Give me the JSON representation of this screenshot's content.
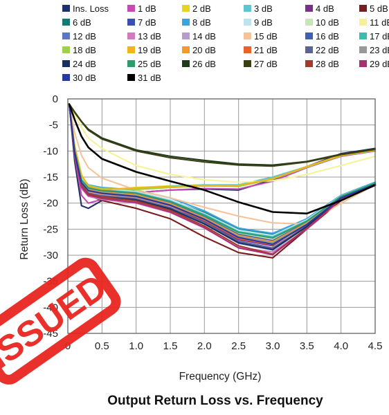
{
  "chart_data": {
    "type": "line",
    "title": "Output Return Loss vs. Frequency",
    "xlabel": "Frequency (GHz)",
    "ylabel": "Return Loss (dB)",
    "xlim": [
      0,
      4.5
    ],
    "ylim": [
      -45,
      0
    ],
    "x_ticks": [
      "0",
      "0.5",
      "1.0",
      "1.5",
      "2.0",
      "2.5",
      "3.0",
      "3.5",
      "4.0",
      "4.5"
    ],
    "y_ticks": [
      "0",
      "-5",
      "-10",
      "-15",
      "-20",
      "-25",
      "-30",
      "-35",
      "-40",
      "-45"
    ],
    "grid": true,
    "legend_position": "top",
    "stamp_text": "ISSUED",
    "stamp_color": "#e8251f",
    "series": [
      {
        "name": "Ins. Loss",
        "color": "#1f2f6b",
        "x": [
          0.02,
          0.1,
          0.2,
          0.3,
          0.5,
          1.0,
          1.5,
          2.0,
          2.5,
          3.0,
          3.5,
          4.0,
          4.5
        ],
        "y": [
          -1,
          -12,
          -20.5,
          -21,
          -19.5,
          -18,
          -17.5,
          -17.3,
          -17.5,
          -15.5,
          -13,
          -10.5,
          -9.5
        ]
      },
      {
        "name": "1 dB",
        "color": "#c74ab0",
        "x": [
          0.02,
          0.1,
          0.2,
          0.3,
          0.5,
          1.0,
          1.5,
          2.0,
          2.5,
          3.0,
          3.5,
          4.0,
          4.5
        ],
        "y": [
          -1,
          -11,
          -18.5,
          -20,
          -19.3,
          -18,
          -17.5,
          -17.2,
          -17.3,
          -15.8,
          -13.2,
          -11,
          -10
        ]
      },
      {
        "name": "2 dB",
        "color": "#e6d51a",
        "x": [
          0.02,
          0.1,
          0.2,
          0.3,
          0.5,
          1.0,
          1.5,
          2.0,
          2.5,
          3.0,
          3.5,
          4.0,
          4.5
        ],
        "y": [
          -1,
          -9,
          -14.5,
          -16.8,
          -17.5,
          -17,
          -16.7,
          -16.5,
          -16.7,
          -15.2,
          -13,
          -10.8,
          -9.8
        ]
      },
      {
        "name": "3 dB",
        "color": "#5ec4cf",
        "x": [
          0.02,
          0.1,
          0.2,
          0.3,
          0.5,
          1.0,
          1.5,
          2.0,
          2.5,
          3.0,
          3.5,
          4.0,
          4.5
        ],
        "y": [
          -1,
          -9,
          -15,
          -17.2,
          -17.7,
          -17.2,
          -16.8,
          -16.5,
          -16.5,
          -15,
          -13,
          -10.8,
          -9.8
        ]
      },
      {
        "name": "4 dB",
        "color": "#7b2e8a",
        "x": [
          0.02,
          0.1,
          0.2,
          0.3,
          0.5,
          1.0,
          1.5,
          2.0,
          2.5,
          3.0,
          3.5,
          4.0,
          4.5
        ],
        "y": [
          -1,
          -10.5,
          -16,
          -17.5,
          -18,
          -18.5,
          -20.5,
          -23.5,
          -27,
          -28.2,
          -24,
          -19,
          -16.5
        ]
      },
      {
        "name": "5 dB",
        "color": "#7b1c1c",
        "x": [
          0.02,
          0.1,
          0.2,
          0.3,
          0.5,
          1.0,
          1.5,
          2.0,
          2.5,
          3.0,
          3.5,
          4.0,
          4.5
        ],
        "y": [
          -1,
          -11,
          -17,
          -18.5,
          -19.5,
          -21,
          -23,
          -26.5,
          -29.5,
          -30.5,
          -25,
          -19.5,
          -16.5
        ]
      },
      {
        "name": "6 dB",
        "color": "#127a6e",
        "x": [
          0.02,
          0.1,
          0.2,
          0.3,
          0.5,
          1.0,
          1.5,
          2.0,
          2.5,
          3.0,
          3.5,
          4.0,
          4.5
        ],
        "y": [
          -1,
          -10,
          -15.5,
          -16.8,
          -17.3,
          -17.8,
          -19.5,
          -21.8,
          -25,
          -26,
          -23,
          -18.5,
          -16
        ]
      },
      {
        "name": "7 dB",
        "color": "#3b4fb0",
        "x": [
          0.02,
          0.1,
          0.2,
          0.3,
          0.5,
          1.0,
          1.5,
          2.0,
          2.5,
          3.0,
          3.5,
          4.0,
          4.5
        ],
        "y": [
          -1,
          -10,
          -15.8,
          -17,
          -17.5,
          -18,
          -19.8,
          -22.3,
          -25.7,
          -26.8,
          -23.5,
          -18.8,
          -16.2
        ]
      },
      {
        "name": "8 dB",
        "color": "#3aa3e0",
        "x": [
          0.02,
          0.1,
          0.2,
          0.3,
          0.5,
          1.0,
          1.5,
          2.0,
          2.5,
          3.0,
          3.5,
          4.0,
          4.5
        ],
        "y": [
          -1,
          -9.5,
          -15,
          -16.5,
          -17,
          -17.5,
          -19,
          -21.5,
          -24.8,
          -25.8,
          -23,
          -18.5,
          -16
        ]
      },
      {
        "name": "9 dB",
        "color": "#bde3ef",
        "x": [
          0.02,
          0.1,
          0.2,
          0.3,
          0.5,
          1.0,
          1.5,
          2.0,
          2.5,
          3.0,
          3.5,
          4.0,
          4.5
        ],
        "y": [
          -1,
          -9.5,
          -15.2,
          -16.8,
          -17.2,
          -17.8,
          -19.4,
          -22,
          -25.2,
          -26.2,
          -23.2,
          -18.6,
          -16.1
        ]
      },
      {
        "name": "10 dB",
        "color": "#c8e6b5",
        "x": [
          0.02,
          0.1,
          0.2,
          0.3,
          0.5,
          1.0,
          1.5,
          2.0,
          2.5,
          3.0,
          3.5,
          4.0,
          4.5
        ],
        "y": [
          -1,
          -9.8,
          -15.5,
          -17,
          -17.5,
          -18.2,
          -19.8,
          -22.5,
          -25.8,
          -26.9,
          -23.6,
          -18.9,
          -16.3
        ]
      },
      {
        "name": "11 dB",
        "color": "#f7f29a",
        "x": [
          0.02,
          0.1,
          0.2,
          0.3,
          0.5,
          1.0,
          1.5,
          2.0,
          2.5,
          3.0,
          3.5,
          4.0,
          4.5
        ],
        "y": [
          -1,
          -3,
          -5.5,
          -7.5,
          -9.5,
          -12.8,
          -14.5,
          -15.5,
          -16,
          -15.7,
          -14.5,
          -12.8,
          -11
        ]
      },
      {
        "name": "12 dB",
        "color": "#5b77bf",
        "x": [
          0.02,
          0.1,
          0.2,
          0.3,
          0.5,
          1.0,
          1.5,
          2.0,
          2.5,
          3.0,
          3.5,
          4.0,
          4.5
        ],
        "y": [
          -1,
          -11,
          -17,
          -18.5,
          -19,
          -19.5,
          -21.2,
          -24,
          -27.7,
          -29,
          -24.5,
          -19,
          -16.5
        ]
      },
      {
        "name": "13 dB",
        "color": "#d17ac0",
        "x": [
          0.02,
          0.1,
          0.2,
          0.3,
          0.5,
          1.0,
          1.5,
          2.0,
          2.5,
          3.0,
          3.5,
          4.0,
          4.5
        ],
        "y": [
          -1,
          -11,
          -17.2,
          -18.7,
          -19.3,
          -20,
          -21.8,
          -24.8,
          -28.5,
          -29.4,
          -25,
          -19.2,
          -16.6
        ]
      },
      {
        "name": "14 dB",
        "color": "#b59bd1",
        "x": [
          0.02,
          0.1,
          0.2,
          0.3,
          0.5,
          1.0,
          1.5,
          2.0,
          2.5,
          3.0,
          3.5,
          4.0,
          4.5
        ],
        "y": [
          -1,
          -10.5,
          -16.5,
          -18,
          -18.5,
          -19,
          -20.6,
          -23.2,
          -26.5,
          -27.8,
          -24,
          -18.9,
          -16.3
        ]
      },
      {
        "name": "15 dB",
        "color": "#f5c29a",
        "x": [
          0.02,
          0.1,
          0.2,
          0.3,
          0.5,
          1.0,
          1.5,
          2.0,
          2.5,
          3.0,
          3.5,
          4.0,
          4.5
        ],
        "y": [
          -1,
          -6.5,
          -10.8,
          -13.2,
          -15.2,
          -17.5,
          -19,
          -20.8,
          -22.5,
          -23.8,
          -24,
          -20,
          -16.5
        ]
      },
      {
        "name": "16 dB",
        "color": "#3f5fb5",
        "x": [
          0.02,
          0.1,
          0.2,
          0.3,
          0.5,
          1.0,
          1.5,
          2.0,
          2.5,
          3.0,
          3.5,
          4.0,
          4.5
        ],
        "y": [
          -1,
          -10.2,
          -15.8,
          -17.3,
          -17.8,
          -18.3,
          -20,
          -22.7,
          -26,
          -27.2,
          -23.7,
          -18.8,
          -16.2
        ]
      },
      {
        "name": "17 dB",
        "color": "#3cbcb0",
        "x": [
          0.02,
          0.1,
          0.2,
          0.3,
          0.5,
          1.0,
          1.5,
          2.0,
          2.5,
          3.0,
          3.5,
          4.0,
          4.5
        ],
        "y": [
          -1,
          -9.8,
          -15.5,
          -17,
          -17.5,
          -18,
          -19.6,
          -22.2,
          -25.5,
          -26.5,
          -23.4,
          -18.7,
          -16.1
        ]
      },
      {
        "name": "18 dB",
        "color": "#9ed04a",
        "x": [
          0.02,
          0.1,
          0.2,
          0.3,
          0.5,
          1.0,
          1.5,
          2.0,
          2.5,
          3.0,
          3.5,
          4.0,
          4.5
        ],
        "y": [
          -1,
          -9.2,
          -14.8,
          -16.6,
          -17.2,
          -17.4,
          -17,
          -16.7,
          -16.8,
          -15.4,
          -13.1,
          -10.9,
          -9.9
        ]
      },
      {
        "name": "19 dB",
        "color": "#f0b41a",
        "x": [
          0.02,
          0.1,
          0.2,
          0.3,
          0.5,
          1.0,
          1.5,
          2.0,
          2.5,
          3.0,
          3.5,
          4.0,
          4.5
        ],
        "y": [
          -1,
          -9.1,
          -14.7,
          -16.7,
          -17.4,
          -17.1,
          -16.9,
          -16.6,
          -16.6,
          -15.3,
          -13,
          -10.8,
          -9.8
        ]
      },
      {
        "name": "20 dB",
        "color": "#f29a2e",
        "x": [
          0.02,
          0.1,
          0.2,
          0.3,
          0.5,
          1.0,
          1.5,
          2.0,
          2.5,
          3.0,
          3.5,
          4.0,
          4.5
        ],
        "y": [
          -1,
          -10,
          -15.9,
          -17.4,
          -17.9,
          -18.4,
          -20.1,
          -22.8,
          -26.2,
          -27.4,
          -23.8,
          -18.8,
          -16.3
        ]
      },
      {
        "name": "21 dB",
        "color": "#e8622a",
        "x": [
          0.02,
          0.1,
          0.2,
          0.3,
          0.5,
          1.0,
          1.5,
          2.0,
          2.5,
          3.0,
          3.5,
          4.0,
          4.5
        ],
        "y": [
          -1,
          -10.4,
          -16.2,
          -17.7,
          -18.2,
          -18.8,
          -20.5,
          -23.3,
          -26.8,
          -28,
          -24.2,
          -19,
          -16.4
        ]
      },
      {
        "name": "22 dB",
        "color": "#5a6496",
        "x": [
          0.02,
          0.1,
          0.2,
          0.3,
          0.5,
          1.0,
          1.5,
          2.0,
          2.5,
          3.0,
          3.5,
          4.0,
          4.5
        ],
        "y": [
          -1,
          -10.7,
          -16.6,
          -18.1,
          -18.6,
          -19.2,
          -20.9,
          -23.7,
          -27.3,
          -28.6,
          -24.4,
          -19.1,
          -16.5
        ]
      },
      {
        "name": "23 dB",
        "color": "#999999",
        "x": [
          0.02,
          0.1,
          0.2,
          0.3,
          0.5,
          1.0,
          1.5,
          2.0,
          2.5,
          3.0,
          3.5,
          4.0,
          4.5
        ],
        "y": [
          -1,
          -10.1,
          -16,
          -17.5,
          -18,
          -18.6,
          -20.3,
          -23,
          -26.4,
          -27.6,
          -24,
          -18.9,
          -16.3
        ]
      },
      {
        "name": "24 dB",
        "color": "#1a2f5e",
        "x": [
          0.02,
          0.1,
          0.2,
          0.3,
          0.5,
          1.0,
          1.5,
          2.0,
          2.5,
          3.0,
          3.5,
          4.0,
          4.5
        ],
        "y": [
          -1,
          -10.8,
          -16.8,
          -18.3,
          -18.8,
          -19.4,
          -21.1,
          -24,
          -27.6,
          -28.9,
          -24.5,
          -19.1,
          -16.5
        ]
      },
      {
        "name": "25 dB",
        "color": "#2f9a6a",
        "x": [
          0.02,
          0.1,
          0.2,
          0.3,
          0.5,
          1.0,
          1.5,
          2.0,
          2.5,
          3.0,
          3.5,
          4.0,
          4.5
        ],
        "y": [
          -1,
          -9.9,
          -15.6,
          -17.1,
          -17.6,
          -18.1,
          -19.7,
          -22.4,
          -25.6,
          -26.7,
          -23.5,
          -18.7,
          -16.2
        ]
      },
      {
        "name": "26 dB",
        "color": "#1f3b1a",
        "x": [
          0.02,
          0.1,
          0.2,
          0.3,
          0.5,
          1.0,
          1.5,
          2.0,
          2.5,
          3.0,
          3.5,
          4.0,
          4.5
        ],
        "y": [
          -1,
          -2.5,
          -4.3,
          -5.8,
          -7.5,
          -9.8,
          -11,
          -11.8,
          -12.5,
          -12.7,
          -12,
          -10.6,
          -9.6
        ]
      },
      {
        "name": "27 dB",
        "color": "#3b3f14",
        "x": [
          0.02,
          0.1,
          0.2,
          0.3,
          0.5,
          1.0,
          1.5,
          2.0,
          2.5,
          3.0,
          3.5,
          4.0,
          4.5
        ],
        "y": [
          -1,
          -2.6,
          -4.4,
          -6,
          -7.7,
          -10,
          -11.3,
          -12.1,
          -12.7,
          -12.9,
          -12.1,
          -10.7,
          -9.7
        ]
      },
      {
        "name": "28 dB",
        "color": "#a33a2a",
        "x": [
          0.02,
          0.1,
          0.2,
          0.3,
          0.5,
          1.0,
          1.5,
          2.0,
          2.5,
          3.0,
          3.5,
          4.0,
          4.5
        ],
        "y": [
          -1,
          -10.6,
          -16.6,
          -18.2,
          -18.8,
          -19.6,
          -21.4,
          -24.4,
          -28.2,
          -29.8,
          -24.8,
          -19.3,
          -16.6
        ]
      },
      {
        "name": "29 dB",
        "color": "#a8306e",
        "x": [
          0.02,
          0.1,
          0.2,
          0.3,
          0.5,
          1.0,
          1.5,
          2.0,
          2.5,
          3.0,
          3.5,
          4.0,
          4.5
        ],
        "y": [
          -1,
          -10.9,
          -16.9,
          -18.5,
          -19.1,
          -19.9,
          -21.7,
          -24.7,
          -28.6,
          -29.9,
          -24.9,
          -19.3,
          -16.6
        ]
      },
      {
        "name": "30 dB",
        "color": "#27399c",
        "x": [
          0.02,
          0.1,
          0.2,
          0.3,
          0.5,
          1.0,
          1.5,
          2.0,
          2.5,
          3.0,
          3.5,
          4.0,
          4.5
        ],
        "y": [
          -1,
          -10.3,
          -16.1,
          -17.6,
          -18.1,
          -18.7,
          -20.4,
          -23.1,
          -26.6,
          -27.9,
          -24.1,
          -19,
          -16.4
        ]
      },
      {
        "name": "31 dB",
        "color": "#000000",
        "x": [
          0.02,
          0.1,
          0.2,
          0.3,
          0.5,
          1.0,
          1.5,
          2.0,
          2.5,
          3.0,
          3.5,
          4.0,
          4.5
        ],
        "y": [
          -1,
          -4,
          -7.2,
          -9.3,
          -11.5,
          -14,
          -15.8,
          -17.5,
          -19.8,
          -21.7,
          -22,
          -19.5,
          -16.5
        ]
      }
    ]
  }
}
